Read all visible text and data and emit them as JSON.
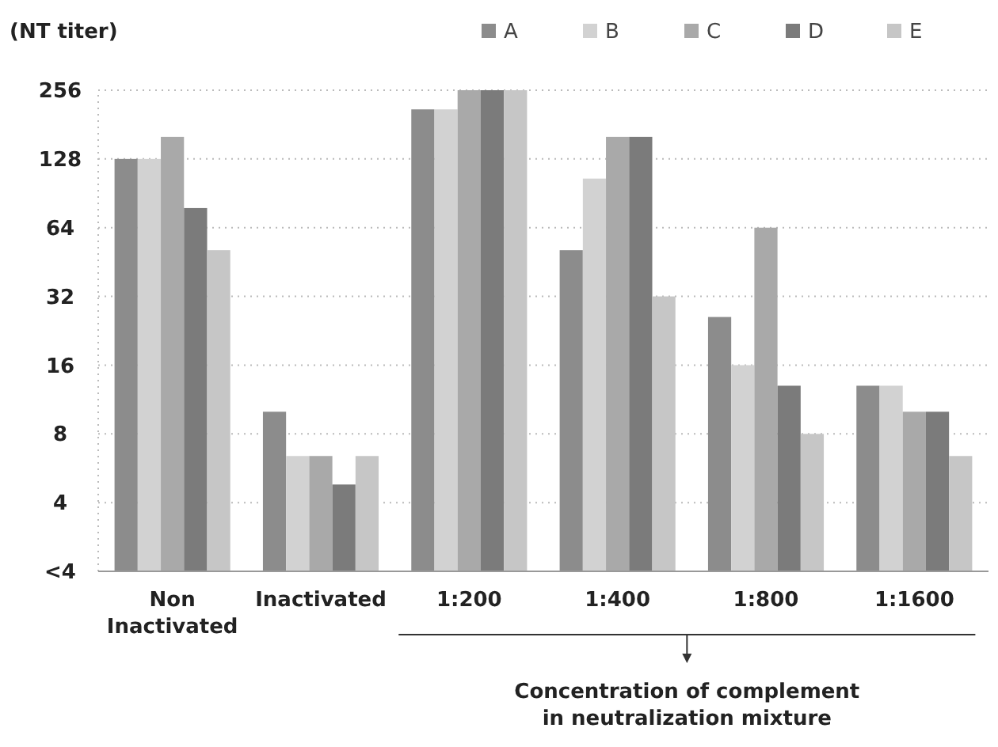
{
  "chart_data": {
    "type": "bar",
    "ylabel": "(NT titer)",
    "categories": [
      "Non Inactivated",
      "Inactivated",
      "1:200",
      "1:400",
      "1:800",
      "1:1600"
    ],
    "series": [
      {
        "name": "A",
        "color": "#8c8c8c",
        "values": [
          128,
          10,
          211,
          51,
          26,
          13
        ]
      },
      {
        "name": "B",
        "color": "#d2d2d2",
        "values": [
          128,
          6.4,
          211,
          105,
          16,
          13
        ]
      },
      {
        "name": "C",
        "color": "#a9a9a9",
        "values": [
          160,
          6.4,
          256,
          160,
          64,
          10
        ]
      },
      {
        "name": "D",
        "color": "#7b7b7b",
        "values": [
          78,
          4.8,
          256,
          160,
          13,
          10
        ]
      },
      {
        "name": "E",
        "color": "#c6c6c6",
        "values": [
          51,
          6.4,
          256,
          32,
          8,
          6.4
        ]
      }
    ],
    "log": true,
    "ylim": [
      2,
      256
    ],
    "yticks": [
      {
        "value": 2,
        "label": "<4"
      },
      4,
      8,
      16,
      32,
      64,
      128,
      256
    ],
    "grid": "y",
    "legend": "top right",
    "annotations": [
      "Concentration of complement in neutralization mixture"
    ]
  }
}
